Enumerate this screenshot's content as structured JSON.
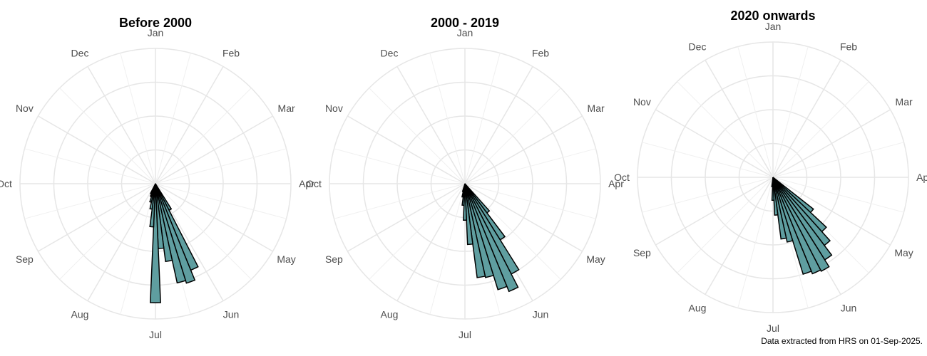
{
  "caption": "Data extracted from HRS on 01-Sep-2025.",
  "colors": {
    "bar_fill": "#5f9ea0",
    "bar_stroke": "#000000",
    "grid": "#e6e6e6",
    "label": "#4d4d4d"
  },
  "month_labels": [
    "Jan",
    "Feb",
    "Mar",
    "Apr",
    "May",
    "Jun",
    "Jul",
    "Aug",
    "Sep",
    "Oct",
    "Nov",
    "Dec"
  ],
  "chart_data": [
    {
      "type": "bar",
      "polar": true,
      "title": "Before 2000",
      "xlabel": "",
      "ylabel": "",
      "categories": [
        "Jan",
        "Feb",
        "Mar",
        "Apr",
        "May",
        "Jun",
        "Jul",
        "Aug",
        "Sep",
        "Oct",
        "Nov",
        "Dec"
      ],
      "bins": [
        {
          "start_day": 150,
          "value": 0.22
        },
        {
          "start_day": 155,
          "value": 0.69
        },
        {
          "start_day": 160,
          "value": 0.77
        },
        {
          "start_day": 165,
          "value": 0.75
        },
        {
          "start_day": 170,
          "value": 0.58
        },
        {
          "start_day": 175,
          "value": 0.48
        },
        {
          "start_day": 180,
          "value": 0.88
        },
        {
          "start_day": 185,
          "value": 0.32
        },
        {
          "start_day": 190,
          "value": 0.19
        },
        {
          "start_day": 195,
          "value": 0.14
        },
        {
          "start_day": 200,
          "value": 0.1
        },
        {
          "start_day": 205,
          "value": 0.08
        }
      ],
      "grid": true
    },
    {
      "type": "bar",
      "polar": true,
      "title": "2000 - 2019",
      "xlabel": "",
      "ylabel": "",
      "categories": [
        "Jan",
        "Feb",
        "Mar",
        "Apr",
        "May",
        "Jun",
        "Jul",
        "Aug",
        "Sep",
        "Oct",
        "Nov",
        "Dec"
      ],
      "bins": [
        {
          "start_day": 140,
          "value": 0.27
        },
        {
          "start_day": 145,
          "value": 0.49
        },
        {
          "start_day": 150,
          "value": 0.75
        },
        {
          "start_day": 155,
          "value": 0.86
        },
        {
          "start_day": 160,
          "value": 0.82
        },
        {
          "start_day": 165,
          "value": 0.71
        },
        {
          "start_day": 170,
          "value": 0.7
        },
        {
          "start_day": 175,
          "value": 0.45
        },
        {
          "start_day": 180,
          "value": 0.27
        },
        {
          "start_day": 185,
          "value": 0.16
        },
        {
          "start_day": 190,
          "value": 0.1
        },
        {
          "start_day": 195,
          "value": 0.06
        }
      ],
      "grid": true
    },
    {
      "type": "bar",
      "polar": true,
      "title": "2020 onwards",
      "xlabel": "",
      "ylabel": "",
      "categories": [
        "Jan",
        "Feb",
        "Mar",
        "Apr",
        "May",
        "Jun",
        "Jul",
        "Aug",
        "Sep",
        "Oct",
        "Nov",
        "Dec"
      ],
      "bins": [
        {
          "start_day": 130,
          "value": 0.38
        },
        {
          "start_day": 135,
          "value": 0.54
        },
        {
          "start_day": 140,
          "value": 0.63
        },
        {
          "start_day": 145,
          "value": 0.72
        },
        {
          "start_day": 150,
          "value": 0.78
        },
        {
          "start_day": 155,
          "value": 0.77
        },
        {
          "start_day": 160,
          "value": 0.75
        },
        {
          "start_day": 165,
          "value": 0.49
        },
        {
          "start_day": 170,
          "value": 0.46
        },
        {
          "start_day": 175,
          "value": 0.28
        },
        {
          "start_day": 180,
          "value": 0.17
        },
        {
          "start_day": 185,
          "value": 0.07
        }
      ],
      "grid": true
    }
  ]
}
